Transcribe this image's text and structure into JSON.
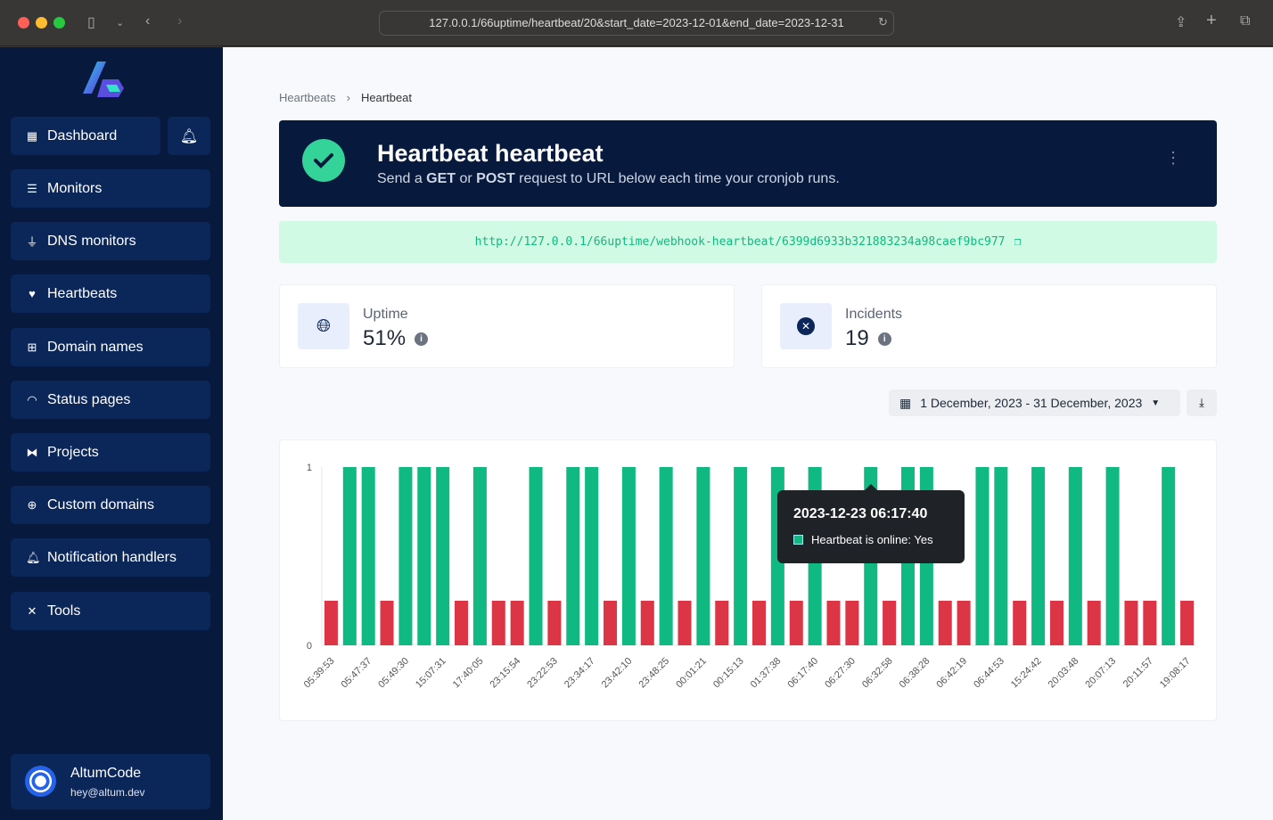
{
  "browser": {
    "url": "127.0.0.1/66uptime/heartbeat/20&start_date=2023-12-01&end_date=2023-12-31"
  },
  "sidebar": {
    "dashboard": "Dashboard",
    "items": [
      {
        "label": "Monitors",
        "icon": "server-icon"
      },
      {
        "label": "DNS monitors",
        "icon": "plug-icon"
      },
      {
        "label": "Heartbeats",
        "icon": "heart-pulse-icon"
      },
      {
        "label": "Domain names",
        "icon": "network-icon"
      },
      {
        "label": "Status pages",
        "icon": "wifi-icon"
      },
      {
        "label": "Projects",
        "icon": "project-diagram-icon"
      },
      {
        "label": "Custom domains",
        "icon": "globe-icon"
      },
      {
        "label": "Notification handlers",
        "icon": "bell-icon"
      },
      {
        "label": "Tools",
        "icon": "tools-icon"
      }
    ],
    "user": {
      "name": "AltumCode",
      "email": "hey@altum.dev"
    }
  },
  "breadcrumb": {
    "parent": "Heartbeats",
    "current": "Heartbeat"
  },
  "hero": {
    "title": "Heartbeat heartbeat",
    "desc_pre": "Send a ",
    "get": "GET",
    "or": " or ",
    "post": "POST",
    "desc_post": " request to URL below each time your cronjob runs."
  },
  "webhook_url": "http://127.0.0.1/66uptime/webhook-heartbeat/6399d6933b321883234a98caef9bc977",
  "stats": {
    "uptime_label": "Uptime",
    "uptime_value": "51%",
    "incidents_label": "Incidents",
    "incidents_value": "19"
  },
  "date_range": "1 December, 2023 - 31 December, 2023",
  "colors": {
    "online": "#10b981",
    "offline": "#dc3545",
    "sidebar": "#071a3d"
  },
  "tooltip": {
    "title": "2023-12-23 06:17:40",
    "text": "Heartbeat is online: Yes"
  },
  "chart_data": {
    "type": "bar",
    "ylim": [
      0,
      1
    ],
    "yticks": [
      "0",
      "1"
    ],
    "x_tick_labels": [
      "05:39:53",
      "05:47:37",
      "05:49:30",
      "15:07:31",
      "17:40:05",
      "23:15:54",
      "23:22:53",
      "23:34:17",
      "23:42:10",
      "23:48:25",
      "00:01:21",
      "00:15:13",
      "01:37:38",
      "06:17:40",
      "06:27:30",
      "06:32:58",
      "06:38:28",
      "06:42:19",
      "06:44:53",
      "15:24:42",
      "20:03:48",
      "20:07:13",
      "20:11:57",
      "19:08:17"
    ],
    "series": [
      {
        "name": "Heartbeat is online",
        "values": [
          0,
          1,
          1,
          0,
          1,
          1,
          1,
          0,
          1,
          0,
          0,
          1,
          0,
          1,
          1,
          0,
          1,
          0,
          1,
          0,
          1,
          0,
          1,
          0,
          1,
          0,
          1,
          0,
          0,
          1,
          0,
          1,
          1,
          0,
          0,
          1,
          1,
          0,
          1,
          0,
          1,
          0,
          1,
          0,
          0,
          1,
          0
        ]
      }
    ]
  }
}
